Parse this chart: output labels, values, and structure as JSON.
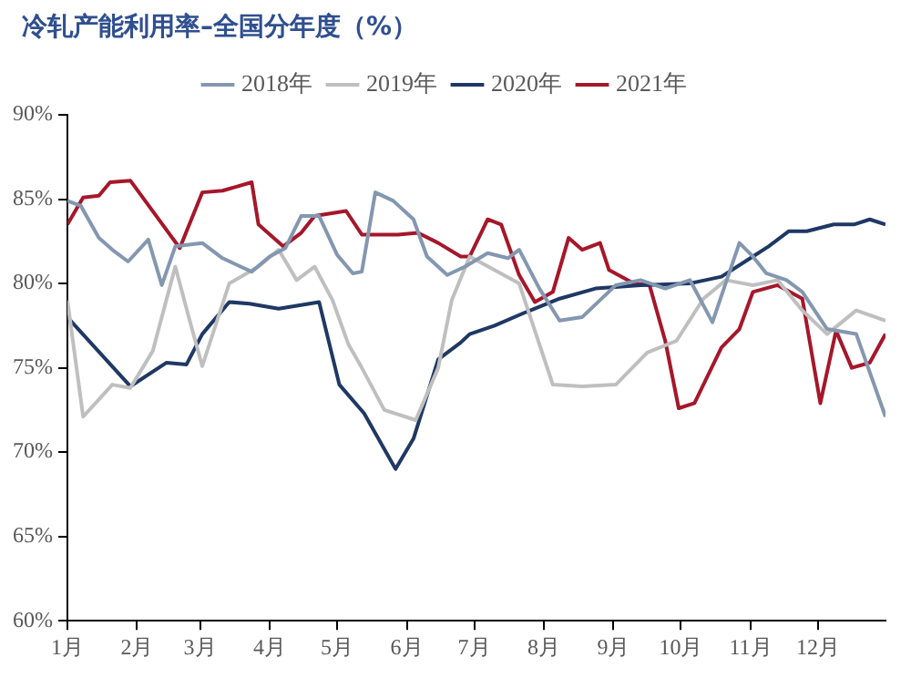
{
  "chart_data": {
    "type": "line",
    "title": "冷轧产能利用率–全国分年度（%）",
    "xlim": [
      "--01-01",
      "--12-31"
    ],
    "xticks": [
      {
        "value": "--01-01",
        "label": "1月"
      },
      {
        "value": "--02-01",
        "label": "2月"
      },
      {
        "value": "--03-01",
        "label": "3月"
      },
      {
        "value": "--04-01",
        "label": "4月"
      },
      {
        "value": "--05-01",
        "label": "5月"
      },
      {
        "value": "--06-01",
        "label": "6月"
      },
      {
        "value": "--07-01",
        "label": "7月"
      },
      {
        "value": "--08-01",
        "label": "8月"
      },
      {
        "value": "--09-01",
        "label": "9月"
      },
      {
        "value": "--10-01",
        "label": "10月"
      },
      {
        "value": "--11-01",
        "label": "11月"
      },
      {
        "value": "--12-01",
        "label": "12月"
      }
    ],
    "ylim": [
      60,
      90
    ],
    "yticks": [
      {
        "value": 60,
        "label": "60%"
      },
      {
        "value": 65,
        "label": "65%"
      },
      {
        "value": 70,
        "label": "70%"
      },
      {
        "value": 75,
        "label": "75%"
      },
      {
        "value": 80,
        "label": "80%"
      },
      {
        "value": 85,
        "label": "85%"
      },
      {
        "value": 90,
        "label": "90%"
      }
    ],
    "grid": false,
    "legend": "top",
    "marker": "none",
    "line_style": "solid",
    "series": [
      {
        "name": "2018年",
        "color": "#8497b0",
        "x": [
          "--01-01",
          "--01-07",
          "--01-15",
          "--01-21",
          "--01-28",
          "--02-06",
          "--02-12",
          "--02-18",
          "--03-02",
          "--03-11",
          "--03-19",
          "--03-24",
          "--04-01",
          "--04-08",
          "--04-15",
          "--04-23",
          "--05-01",
          "--05-08",
          "--05-12",
          "--05-18",
          "--05-26",
          "--06-04",
          "--06-10",
          "--06-19",
          "--06-27",
          "--07-07",
          "--07-16",
          "--07-21",
          "--07-30",
          "--08-08",
          "--08-18",
          "--09-02",
          "--09-13",
          "--09-24",
          "--10-05",
          "--10-15",
          "--10-27",
          "--11-02",
          "--11-08",
          "--11-17",
          "--11-24",
          "--12-05",
          "--12-18",
          "--12-31"
        ],
        "values": [
          84.9,
          84.6,
          82.7,
          82,
          81.3,
          82.6,
          79.9,
          82.2,
          82.4,
          81.5,
          81,
          80.7,
          81.6,
          82.1,
          84,
          84,
          81.7,
          80.6,
          80.7,
          85.4,
          84.9,
          83.8,
          81.6,
          80.5,
          81,
          81.8,
          81.5,
          82,
          79.7,
          77.8,
          78,
          79.9,
          80.2,
          79.7,
          80.2,
          77.7,
          82.4,
          81.6,
          80.6,
          80.2,
          79.5,
          77.3,
          77,
          72.1
        ]
      },
      {
        "name": "2019年",
        "color": "#bfbfbf",
        "x": [
          "--01-01",
          "--01-08",
          "--01-21",
          "--01-29",
          "--02-08",
          "--02-18",
          "--02-24",
          "--03-02",
          "--03-14",
          "--03-27",
          "--04-05",
          "--04-13",
          "--04-21",
          "--04-29",
          "--05-06",
          "--05-12",
          "--05-22",
          "--06-05",
          "--06-15",
          "--06-21",
          "--06-29",
          "--07-21",
          "--08-05",
          "--08-18",
          "--09-02",
          "--09-16",
          "--09-29",
          "--10-11",
          "--10-21",
          "--11-02",
          "--11-13",
          "--11-24",
          "--12-05",
          "--12-18",
          "--12-31"
        ],
        "values": [
          79,
          72.1,
          74,
          73.8,
          76,
          81,
          78,
          75.1,
          80,
          81,
          82,
          80.2,
          81,
          79,
          76.4,
          75,
          72.5,
          71.9,
          75,
          79,
          81.6,
          80,
          74,
          73.9,
          74,
          75.9,
          76.6,
          79.1,
          80.2,
          79.9,
          80.2,
          78.4,
          77,
          78.4,
          77.8
        ]
      },
      {
        "name": "2020年",
        "color": "#1f3864",
        "x": [
          "--01-01",
          "--01-29",
          "--02-14",
          "--02-23",
          "--03-02",
          "--03-14",
          "--03-23",
          "--04-05",
          "--04-23",
          "--05-02",
          "--05-13",
          "--05-27",
          "--06-04",
          "--06-15",
          "--06-25",
          "--06-29",
          "--07-10",
          "--07-24",
          "--08-08",
          "--08-24",
          "--09-13",
          "--10-05",
          "--10-19",
          "--11-02",
          "--11-09",
          "--11-18",
          "--11-26",
          "--12-08",
          "--12-17",
          "--12-24",
          "--12-31"
        ],
        "values": [
          78,
          73.9,
          75.3,
          75.2,
          77,
          78.9,
          78.8,
          78.5,
          78.9,
          74,
          72.3,
          69,
          70.8,
          75.5,
          76.5,
          77,
          77.5,
          78.3,
          79.1,
          79.7,
          79.9,
          80,
          80.4,
          81.6,
          82.2,
          83.1,
          83.1,
          83.5,
          83.5,
          83.8,
          83.5
        ]
      },
      {
        "name": "2021年",
        "color": "#a5172a",
        "x": [
          "--01-01",
          "--01-08",
          "--01-15",
          "--01-20",
          "--01-29",
          "--02-20",
          "--03-02",
          "--03-11",
          "--03-24",
          "--03-27",
          "--04-07",
          "--04-15",
          "--04-21",
          "--05-05",
          "--05-12",
          "--05-28",
          "--06-06",
          "--06-15",
          "--06-25",
          "--06-29",
          "--07-07",
          "--07-13",
          "--07-21",
          "--07-28",
          "--08-05",
          "--08-12",
          "--08-18",
          "--08-26",
          "--08-30",
          "--09-10",
          "--09-17",
          "--09-24",
          "--09-30",
          "--10-07",
          "--10-19",
          "--10-27",
          "--11-02",
          "--11-13",
          "--11-24",
          "--12-02",
          "--12-09",
          "--12-16",
          "--12-24",
          "--12-31"
        ],
        "values": [
          83.5,
          85.1,
          85.2,
          86,
          86.1,
          82.1,
          85.4,
          85.5,
          86,
          83.5,
          82.2,
          83,
          84,
          84.3,
          82.9,
          82.9,
          83,
          82.4,
          81.6,
          81.6,
          83.8,
          83.5,
          80.5,
          78.9,
          79.5,
          82.7,
          82,
          82.4,
          80.8,
          80,
          79.9,
          76.6,
          72.6,
          72.9,
          76.2,
          77.3,
          79.5,
          79.9,
          79.1,
          72.9,
          77.2,
          75,
          75.3,
          77
        ]
      }
    ]
  }
}
